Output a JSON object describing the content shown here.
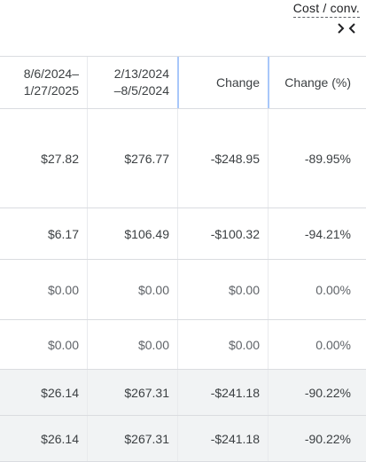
{
  "group_header": {
    "label": "Cost / conv."
  },
  "columns": [
    {
      "label": "8/6/2024–\n1/27/2025"
    },
    {
      "label": "2/13/2024\n–8/5/2024"
    },
    {
      "label": "Change"
    },
    {
      "label": "Change (%)"
    }
  ],
  "rows": [
    {
      "cells": [
        "$27.82",
        "$276.77",
        "-$248.95",
        "-89.95%"
      ]
    },
    {
      "cells": [
        "$6.17",
        "$106.49",
        "-$100.32",
        "-94.21%"
      ]
    },
    {
      "cells": [
        "$0.00",
        "$0.00",
        "$0.00",
        "0.00%"
      ]
    },
    {
      "cells": [
        "$0.00",
        "$0.00",
        "$0.00",
        "0.00%"
      ]
    },
    {
      "cells": [
        "$26.14",
        "$267.31",
        "-$241.18",
        "-90.22%"
      ]
    },
    {
      "cells": [
        "$26.14",
        "$267.31",
        "-$241.18",
        "-90.22%"
      ]
    }
  ],
  "icons": {
    "collapse": "collapse-columns-icon"
  },
  "colors": {
    "divider": "#dadce0",
    "highlight_line": "#a8c7fa",
    "total_row_bg": "#f1f3f4",
    "text": "#3c4043"
  }
}
